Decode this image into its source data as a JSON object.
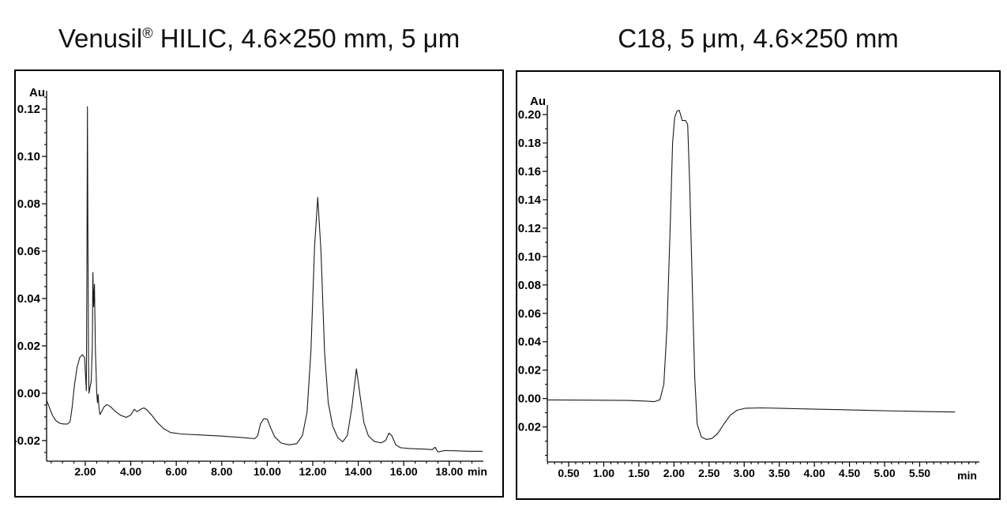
{
  "colors": {
    "background": "#ffffff",
    "frame": "#000000",
    "axis": "#000000",
    "trace": "#1a1a1a",
    "tick_text": "#000000",
    "title_text": "#111111"
  },
  "titles": {
    "left": {
      "main": "Venusil",
      "sup": "®",
      "rest": " HILIC, 4.6×250 mm, 5 μm"
    },
    "right": {
      "text": "C18, 5 μm, 4.6×250 mm"
    }
  },
  "chart_data": [
    {
      "id": "hilic-chromatogram",
      "type": "line",
      "title": "Venusil® HILIC, 4.6×250 mm, 5 μm",
      "xlabel": "min",
      "ylabel": "Au",
      "grid": false,
      "legend": "none",
      "xlim": [
        0.3,
        19.5
      ],
      "ylim": [
        -0.0287,
        0.1277
      ],
      "x_major_ticks": [
        2,
        4,
        6,
        8,
        10,
        12,
        14,
        16,
        18
      ],
      "x_major_labels": [
        "2.00",
        "4.00",
        "6.00",
        "8.00",
        "10.00",
        "12.00",
        "14.00",
        "16.00",
        "18.00"
      ],
      "x_minor_step": 0.5,
      "y_major_ticks": [
        0.12,
        0.1,
        0.08,
        0.06,
        0.04,
        0.02,
        0.0,
        -0.02
      ],
      "y_major_labels": [
        "0.12",
        "0.10",
        "0.08",
        "0.06",
        "0.04",
        "0.02",
        "0.00",
        "-0.02"
      ],
      "y_minor_step": 0.005,
      "peaks": [
        {
          "t": 2.1,
          "au": 0.121
        },
        {
          "t": 2.34,
          "au": 0.051
        },
        {
          "t": 9.9,
          "au": -0.011
        },
        {
          "t": 12.22,
          "au": 0.083
        },
        {
          "t": 13.92,
          "au": 0.01
        },
        {
          "t": 15.35,
          "au": -0.017
        }
      ],
      "series": [
        {
          "name": "UV absorbance trace",
          "points": [
            [
              0.3,
              -0.003
            ],
            [
              0.42,
              -0.006
            ],
            [
              0.55,
              -0.0092
            ],
            [
              0.7,
              -0.0115
            ],
            [
              0.88,
              -0.0127
            ],
            [
              1.05,
              -0.013
            ],
            [
              1.22,
              -0.013
            ],
            [
              1.33,
              -0.012
            ],
            [
              1.42,
              -0.006
            ],
            [
              1.52,
              0.003
            ],
            [
              1.64,
              0.011
            ],
            [
              1.76,
              0.0152
            ],
            [
              1.88,
              0.0163
            ],
            [
              1.97,
              0.015
            ],
            [
              2.02,
              0.006
            ],
            [
              2.045,
              0.001
            ],
            [
              2.07,
              0.05
            ],
            [
              2.095,
              0.121
            ],
            [
              2.12,
              0.06
            ],
            [
              2.145,
              0.014
            ],
            [
              2.165,
              0.0
            ],
            [
              2.2,
              0.002
            ],
            [
              2.26,
              0.005
            ],
            [
              2.31,
              0.02
            ],
            [
              2.335,
              0.051
            ],
            [
              2.37,
              0.0365
            ],
            [
              2.405,
              0.046
            ],
            [
              2.445,
              0.018
            ],
            [
              2.475,
              0.01
            ],
            [
              2.5,
              0.0005
            ],
            [
              2.535,
              -0.004
            ],
            [
              2.565,
              -0.0005
            ],
            [
              2.6,
              -0.0055
            ],
            [
              2.645,
              -0.009
            ],
            [
              2.72,
              -0.0078
            ],
            [
              2.82,
              -0.0058
            ],
            [
              2.95,
              -0.0048
            ],
            [
              3.1,
              -0.0056
            ],
            [
              3.3,
              -0.0075
            ],
            [
              3.55,
              -0.0093
            ],
            [
              3.8,
              -0.0102
            ],
            [
              4.0,
              -0.0092
            ],
            [
              4.15,
              -0.0068
            ],
            [
              4.28,
              -0.0078
            ],
            [
              4.43,
              -0.0068
            ],
            [
              4.58,
              -0.0062
            ],
            [
              4.73,
              -0.0072
            ],
            [
              4.93,
              -0.0094
            ],
            [
              5.15,
              -0.0122
            ],
            [
              5.45,
              -0.015
            ],
            [
              5.75,
              -0.0166
            ],
            [
              6.2,
              -0.0172
            ],
            [
              7.0,
              -0.0176
            ],
            [
              8.0,
              -0.0181
            ],
            [
              9.0,
              -0.0188
            ],
            [
              9.45,
              -0.0192
            ],
            [
              9.58,
              -0.018
            ],
            [
              9.7,
              -0.013
            ],
            [
              9.85,
              -0.0107
            ],
            [
              10.0,
              -0.011
            ],
            [
              10.15,
              -0.0146
            ],
            [
              10.32,
              -0.0183
            ],
            [
              10.6,
              -0.021
            ],
            [
              10.95,
              -0.0218
            ],
            [
              11.3,
              -0.0213
            ],
            [
              11.55,
              -0.0178
            ],
            [
              11.75,
              -0.008
            ],
            [
              11.92,
              0.018
            ],
            [
              12.08,
              0.062
            ],
            [
              12.22,
              0.0827
            ],
            [
              12.36,
              0.06
            ],
            [
              12.52,
              0.017
            ],
            [
              12.68,
              -0.004
            ],
            [
              12.88,
              -0.014
            ],
            [
              13.1,
              -0.0188
            ],
            [
              13.32,
              -0.0205
            ],
            [
              13.52,
              -0.0178
            ],
            [
              13.72,
              -0.006
            ],
            [
              13.92,
              0.0103
            ],
            [
              14.08,
              -0.001
            ],
            [
              14.25,
              -0.0125
            ],
            [
              14.45,
              -0.018
            ],
            [
              14.7,
              -0.0203
            ],
            [
              15.0,
              -0.021
            ],
            [
              15.2,
              -0.02
            ],
            [
              15.35,
              -0.0168
            ],
            [
              15.48,
              -0.018
            ],
            [
              15.65,
              -0.0218
            ],
            [
              15.85,
              -0.023
            ],
            [
              16.3,
              -0.0234
            ],
            [
              16.9,
              -0.0236
            ],
            [
              17.25,
              -0.0238
            ],
            [
              17.38,
              -0.0228
            ],
            [
              17.5,
              -0.0248
            ],
            [
              17.8,
              -0.0242
            ],
            [
              18.3,
              -0.0243
            ],
            [
              18.9,
              -0.0245
            ],
            [
              19.45,
              -0.0245
            ]
          ]
        }
      ]
    },
    {
      "id": "c18-chromatogram",
      "type": "line",
      "title": "C18, 5 μm, 4.6×250 mm",
      "xlabel": "min",
      "ylabel": "Au",
      "grid": false,
      "legend": "none",
      "xlim": [
        0.196,
        6.35
      ],
      "ylim": [
        -0.0447,
        0.2067
      ],
      "x_major_ticks": [
        0.5,
        1.0,
        1.5,
        2.0,
        2.5,
        3.0,
        3.5,
        4.0,
        4.5,
        5.0,
        5.5
      ],
      "x_major_labels": [
        "0.50",
        "1.00",
        "1.50",
        "2.00",
        "2.50",
        "3.00",
        "3.50",
        "4.00",
        "4.50",
        "5.00",
        "5.50"
      ],
      "x_minor_step": 0.1,
      "y_major_ticks": [
        0.2,
        0.18,
        0.16,
        0.14,
        0.12,
        0.1,
        0.08,
        0.06,
        0.04,
        0.02,
        0.0,
        -0.02
      ],
      "y_major_labels": [
        "0.20",
        "0.18",
        "0.16",
        "0.14",
        "0.12",
        "0.10",
        "0.08",
        "0.06",
        "0.04",
        "0.02",
        "0.00",
        "-0.02"
      ],
      "y_minor_step": 0.01,
      "peaks": [
        {
          "t": 2.06,
          "au": 0.203
        }
      ],
      "series": [
        {
          "name": "UV absorbance trace",
          "points": [
            [
              0.2,
              -0.001
            ],
            [
              0.6,
              -0.0011
            ],
            [
              1.0,
              -0.0012
            ],
            [
              1.35,
              -0.0014
            ],
            [
              1.6,
              -0.0018
            ],
            [
              1.72,
              -0.0022
            ],
            [
              1.8,
              -0.0008
            ],
            [
              1.855,
              0.01
            ],
            [
              1.9,
              0.05
            ],
            [
              1.945,
              0.12
            ],
            [
              1.98,
              0.18
            ],
            [
              2.01,
              0.198
            ],
            [
              2.045,
              0.2025
            ],
            [
              2.075,
              0.203
            ],
            [
              2.1,
              0.199
            ],
            [
              2.115,
              0.1958
            ],
            [
              2.165,
              0.1958
            ],
            [
              2.195,
              0.193
            ],
            [
              2.225,
              0.15
            ],
            [
              2.26,
              0.08
            ],
            [
              2.295,
              0.015
            ],
            [
              2.33,
              -0.018
            ],
            [
              2.39,
              -0.027
            ],
            [
              2.46,
              -0.0288
            ],
            [
              2.54,
              -0.0282
            ],
            [
              2.62,
              -0.0248
            ],
            [
              2.71,
              -0.018
            ],
            [
              2.8,
              -0.0118
            ],
            [
              2.9,
              -0.0082
            ],
            [
              3.02,
              -0.0068
            ],
            [
              3.25,
              -0.0066
            ],
            [
              3.6,
              -0.007
            ],
            [
              4.0,
              -0.0075
            ],
            [
              4.4,
              -0.0079
            ],
            [
              4.8,
              -0.0084
            ],
            [
              5.2,
              -0.0088
            ],
            [
              5.6,
              -0.0092
            ],
            [
              6.0,
              -0.0095
            ]
          ]
        }
      ]
    }
  ]
}
